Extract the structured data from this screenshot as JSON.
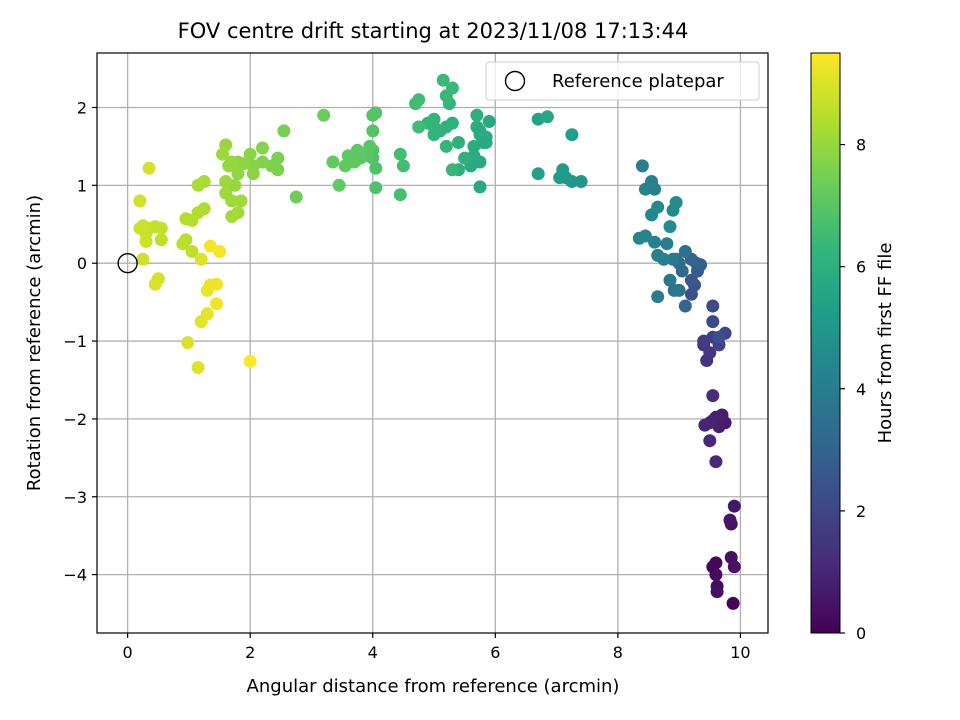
{
  "chart_data": {
    "type": "scatter",
    "title": "FOV centre drift starting at 2023/11/08 17:13:44",
    "xlabel": "Angular distance from reference (arcmin)",
    "ylabel": "Rotation from reference (arcmin)",
    "xlim": [
      -0.5,
      10.45
    ],
    "ylim": [
      -4.75,
      2.7
    ],
    "x_ticks": [
      0,
      2,
      4,
      6,
      8,
      10
    ],
    "y_ticks": [
      -4,
      -3,
      -2,
      -1,
      0,
      1,
      2
    ],
    "x_tick_labels": [
      "0",
      "2",
      "4",
      "6",
      "8",
      "10"
    ],
    "y_tick_labels": [
      "−4",
      "−3",
      "−2",
      "−1",
      "0",
      "1",
      "2"
    ],
    "grid": true,
    "legend": {
      "location": "top-right",
      "entries": [
        "Reference platepar"
      ]
    },
    "reference_point": {
      "name": "Reference platepar",
      "x": 0,
      "y": 0
    },
    "colorbar": {
      "label": "Hours from first FF file",
      "range": [
        0,
        9.5
      ],
      "ticks": [
        0,
        2,
        4,
        6,
        8
      ],
      "tick_labels": [
        "0",
        "2",
        "4",
        "6",
        "8"
      ],
      "colormap": "viridis"
    },
    "colors": {
      "viridis": [
        "#440154",
        "#482878",
        "#3e4989",
        "#31688e",
        "#26828e",
        "#1f9e89",
        "#35b779",
        "#6ece58",
        "#b5de2b",
        "#fde725"
      ],
      "grid": "#b0b0b0",
      "axes": "#000000"
    },
    "points": [
      [
        9.55,
        -3.9,
        0.15
      ],
      [
        9.6,
        -3.85,
        0.2
      ],
      [
        9.6,
        -4.0,
        0.25
      ],
      [
        9.62,
        -4.15,
        0.3
      ],
      [
        9.62,
        -4.22,
        0.35
      ],
      [
        9.88,
        -4.37,
        0.1
      ],
      [
        9.85,
        -3.78,
        0.4
      ],
      [
        9.9,
        -3.9,
        0.45
      ],
      [
        9.85,
        -3.35,
        0.5
      ],
      [
        9.83,
        -3.3,
        0.55
      ],
      [
        9.9,
        -3.12,
        0.6
      ],
      [
        9.75,
        -2.05,
        0.7
      ],
      [
        9.65,
        -2.1,
        0.75
      ],
      [
        9.7,
        -1.95,
        0.8
      ],
      [
        9.6,
        -1.98,
        0.85
      ],
      [
        9.55,
        -2.02,
        0.9
      ],
      [
        9.5,
        -2.05,
        0.95
      ],
      [
        9.42,
        -2.08,
        1.0
      ],
      [
        9.6,
        -2.55,
        1.05
      ],
      [
        9.5,
        -2.28,
        1.1
      ],
      [
        9.55,
        -1.7,
        1.2
      ],
      [
        9.45,
        -1.25,
        1.4
      ],
      [
        9.5,
        -1.15,
        1.5
      ],
      [
        9.4,
        -1.05,
        1.6
      ],
      [
        9.4,
        -1.0,
        1.7
      ],
      [
        9.55,
        -0.95,
        1.8
      ],
      [
        9.65,
        -1.05,
        1.9
      ],
      [
        9.75,
        -0.9,
        2.0
      ],
      [
        9.55,
        -0.75,
        2.1
      ],
      [
        9.55,
        -0.55,
        2.2
      ],
      [
        9.65,
        -0.95,
        2.3
      ],
      [
        9.2,
        -0.4,
        2.4
      ],
      [
        9.25,
        -0.28,
        2.5
      ],
      [
        9.2,
        -0.22,
        2.6
      ],
      [
        9.3,
        -0.1,
        2.7
      ],
      [
        9.35,
        -0.02,
        2.8
      ],
      [
        9.28,
        0.0,
        2.9
      ],
      [
        9.2,
        0.05,
        3.0
      ],
      [
        9.1,
        -0.55,
        3.1
      ],
      [
        9.05,
        -0.1,
        3.2
      ],
      [
        9.0,
        0.0,
        3.3
      ],
      [
        8.95,
        0.05,
        3.4
      ],
      [
        9.1,
        0.15,
        3.5
      ],
      [
        9.0,
        -0.35,
        3.6
      ],
      [
        8.92,
        -0.35,
        3.7
      ],
      [
        8.85,
        -0.22,
        3.8
      ],
      [
        8.9,
        0.05,
        3.9
      ],
      [
        8.8,
        0.25,
        4.0
      ],
      [
        8.65,
        -0.43,
        4.05
      ],
      [
        8.75,
        0.05,
        4.1
      ],
      [
        8.65,
        0.1,
        4.15
      ],
      [
        8.6,
        0.27,
        4.2
      ],
      [
        8.45,
        0.35,
        4.3
      ],
      [
        8.35,
        0.32,
        4.35
      ],
      [
        8.55,
        0.62,
        4.4
      ],
      [
        8.65,
        0.72,
        4.45
      ],
      [
        8.9,
        0.68,
        4.5
      ],
      [
        8.95,
        0.78,
        4.55
      ],
      [
        8.85,
        0.47,
        4.6
      ],
      [
        8.45,
        0.95,
        4.3
      ],
      [
        8.4,
        1.25,
        4.0
      ],
      [
        8.55,
        1.0,
        4.1
      ],
      [
        8.6,
        0.95,
        4.2
      ],
      [
        8.55,
        1.05,
        4.25
      ],
      [
        7.4,
        1.05,
        5.0
      ],
      [
        7.25,
        1.05,
        5.1
      ],
      [
        7.15,
        1.1,
        5.15
      ],
      [
        7.05,
        1.1,
        5.2
      ],
      [
        7.1,
        1.2,
        5.25
      ],
      [
        7.25,
        1.65,
        5.3
      ],
      [
        6.7,
        1.15,
        5.4
      ],
      [
        6.7,
        1.85,
        5.5
      ],
      [
        6.85,
        1.88,
        5.6
      ],
      [
        5.75,
        0.98,
        5.7
      ],
      [
        5.75,
        1.3,
        5.75
      ],
      [
        5.8,
        1.55,
        5.8
      ],
      [
        5.75,
        1.65,
        5.85
      ],
      [
        5.7,
        1.75,
        5.9
      ],
      [
        5.7,
        1.9,
        5.95
      ],
      [
        5.65,
        1.5,
        5.9
      ],
      [
        5.65,
        1.38,
        5.85
      ],
      [
        5.6,
        1.25,
        5.8
      ],
      [
        5.85,
        1.55,
        5.7
      ],
      [
        5.9,
        1.82,
        5.75
      ],
      [
        5.85,
        1.62,
        5.8
      ],
      [
        5.75,
        1.7,
        5.85
      ],
      [
        5.4,
        1.2,
        6.0
      ],
      [
        5.5,
        1.35,
        6.05
      ],
      [
        5.4,
        1.55,
        6.0
      ],
      [
        5.3,
        1.8,
        6.05
      ],
      [
        5.2,
        1.75,
        6.1
      ],
      [
        5.1,
        1.7,
        6.15
      ],
      [
        5.0,
        1.65,
        6.2
      ],
      [
        5.0,
        1.75,
        6.2
      ],
      [
        4.9,
        1.8,
        6.25
      ],
      [
        5.0,
        1.85,
        6.25
      ],
      [
        5.25,
        2.05,
        6.3
      ],
      [
        5.2,
        2.15,
        6.35
      ],
      [
        5.15,
        2.35,
        6.4
      ],
      [
        5.3,
        2.25,
        6.4
      ],
      [
        5.2,
        1.5,
        6.3
      ],
      [
        5.3,
        1.2,
        6.35
      ],
      [
        4.75,
        1.75,
        6.5
      ],
      [
        4.75,
        2.1,
        6.5
      ],
      [
        4.7,
        2.05,
        6.55
      ],
      [
        4.5,
        1.25,
        6.6
      ],
      [
        4.45,
        1.4,
        6.6
      ],
      [
        4.45,
        0.88,
        6.65
      ],
      [
        4.05,
        0.97,
        6.8
      ],
      [
        4.05,
        1.22,
        6.8
      ],
      [
        4.0,
        1.35,
        6.85
      ],
      [
        4.0,
        1.45,
        6.85
      ],
      [
        4.0,
        1.7,
        6.9
      ],
      [
        4.0,
        1.9,
        6.95
      ],
      [
        4.05,
        1.93,
        6.95
      ],
      [
        3.95,
        1.5,
        7.0
      ],
      [
        3.9,
        1.38,
        7.0
      ],
      [
        3.8,
        1.35,
        7.05
      ],
      [
        3.75,
        1.45,
        7.05
      ],
      [
        3.7,
        1.3,
        7.1
      ],
      [
        3.6,
        1.38,
        7.1
      ],
      [
        3.55,
        1.25,
        7.15
      ],
      [
        3.45,
        1.0,
        7.15
      ],
      [
        3.35,
        1.3,
        7.2
      ],
      [
        3.2,
        1.9,
        7.3
      ],
      [
        2.75,
        0.85,
        7.4
      ],
      [
        2.55,
        1.7,
        7.5
      ],
      [
        2.45,
        1.35,
        7.55
      ],
      [
        2.45,
        1.2,
        7.6
      ],
      [
        2.35,
        1.25,
        7.6
      ],
      [
        2.2,
        1.3,
        7.65
      ],
      [
        2.2,
        1.48,
        7.7
      ],
      [
        2.05,
        1.25,
        7.75
      ],
      [
        2.05,
        1.15,
        7.8
      ],
      [
        2.0,
        1.4,
        7.8
      ],
      [
        1.9,
        1.28,
        7.85
      ],
      [
        1.8,
        1.3,
        7.85
      ],
      [
        1.8,
        1.15,
        7.9
      ],
      [
        1.75,
        1.0,
        7.95
      ],
      [
        1.7,
        1.3,
        7.95
      ],
      [
        1.65,
        1.25,
        8.0
      ],
      [
        1.6,
        1.52,
        8.0
      ],
      [
        1.55,
        1.4,
        8.05
      ],
      [
        1.6,
        1.05,
        8.05
      ],
      [
        1.6,
        0.9,
        8.1
      ],
      [
        1.7,
        0.8,
        8.1
      ],
      [
        1.85,
        0.8,
        8.15
      ],
      [
        1.8,
        0.65,
        8.15
      ],
      [
        1.7,
        0.6,
        8.2
      ],
      [
        1.25,
        1.05,
        8.25
      ],
      [
        1.15,
        1.0,
        8.3
      ],
      [
        1.25,
        0.7,
        8.35
      ],
      [
        1.15,
        0.65,
        8.4
      ],
      [
        1.05,
        0.55,
        8.45
      ],
      [
        0.95,
        0.57,
        8.45
      ],
      [
        0.95,
        0.3,
        8.5
      ],
      [
        0.9,
        0.25,
        8.55
      ],
      [
        1.05,
        0.15,
        8.6
      ],
      [
        0.55,
        0.3,
        8.6
      ],
      [
        0.55,
        0.45,
        8.65
      ],
      [
        0.45,
        0.47,
        8.7
      ],
      [
        0.35,
        0.45,
        8.7
      ],
      [
        0.3,
        0.38,
        8.75
      ],
      [
        0.25,
        0.48,
        8.75
      ],
      [
        0.2,
        0.45,
        8.8
      ],
      [
        0.3,
        0.28,
        8.8
      ],
      [
        0.25,
        0.05,
        8.85
      ],
      [
        0.2,
        0.8,
        8.85
      ],
      [
        0.35,
        1.22,
        8.9
      ],
      [
        0.5,
        -0.2,
        8.9
      ],
      [
        0.45,
        -0.27,
        8.95
      ],
      [
        1.2,
        0.05,
        9.0
      ],
      [
        0.98,
        -1.02,
        9.0
      ],
      [
        1.15,
        -1.34,
        9.05
      ],
      [
        1.2,
        -0.75,
        9.1
      ],
      [
        1.3,
        -0.65,
        9.15
      ],
      [
        1.3,
        -0.35,
        9.2
      ],
      [
        1.35,
        -0.28,
        9.25
      ],
      [
        1.45,
        -0.27,
        9.3
      ],
      [
        1.45,
        -0.52,
        9.3
      ],
      [
        1.35,
        0.22,
        9.35
      ],
      [
        1.5,
        0.15,
        9.4
      ],
      [
        2.0,
        -1.26,
        9.45
      ]
    ]
  }
}
